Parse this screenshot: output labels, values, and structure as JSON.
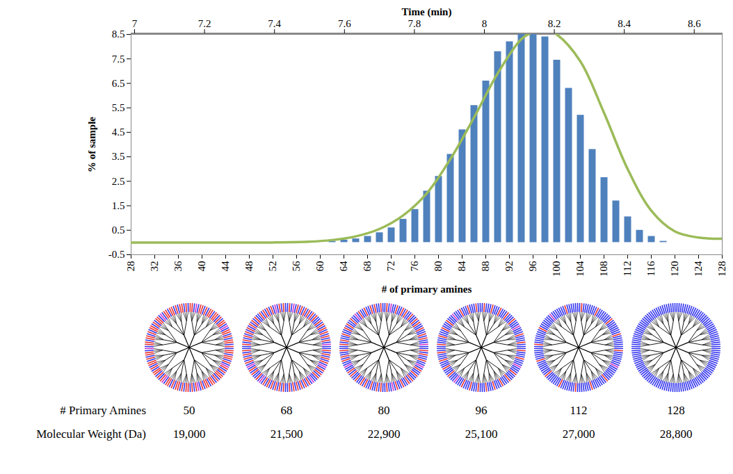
{
  "chart_data": {
    "type": "bar",
    "x_label": "# of primary amines",
    "y_label": "% of sample",
    "x2_label": "Time (min)",
    "x": [
      62,
      64,
      66,
      68,
      70,
      72,
      74,
      76,
      78,
      80,
      82,
      84,
      86,
      88,
      90,
      92,
      94,
      96,
      98,
      100,
      102,
      104,
      106,
      108,
      110,
      112,
      114,
      116,
      118
    ],
    "values": [
      0.05,
      0.1,
      0.15,
      0.25,
      0.4,
      0.6,
      0.95,
      1.35,
      2.1,
      2.7,
      3.6,
      4.6,
      5.6,
      6.6,
      7.8,
      8.2,
      8.5,
      8.5,
      8.4,
      7.45,
      6.3,
      5.2,
      3.8,
      2.65,
      1.7,
      1.05,
      0.5,
      0.25,
      0.05
    ],
    "color": "#4f81bd",
    "fit": {
      "type": "line",
      "color": "#9bbb59",
      "x": [
        28,
        40,
        52,
        58,
        62,
        66,
        70,
        74,
        78,
        82,
        86,
        90,
        94,
        96,
        98,
        100,
        104,
        108,
        112,
        116,
        120,
        124,
        128
      ],
      "values": [
        0,
        0,
        0,
        0.03,
        0.1,
        0.25,
        0.55,
        1.1,
        2.0,
        3.4,
        5.1,
        6.9,
        8.3,
        8.6,
        8.7,
        8.5,
        7.4,
        5.3,
        3.0,
        1.3,
        0.45,
        0.2,
        0.15
      ]
    },
    "xlim": [
      28,
      128
    ],
    "xticks": [
      28,
      32,
      36,
      40,
      44,
      48,
      52,
      56,
      60,
      64,
      68,
      72,
      76,
      80,
      84,
      88,
      92,
      96,
      100,
      104,
      108,
      112,
      116,
      120,
      124,
      128
    ],
    "ylim": [
      -0.5,
      8.5
    ],
    "yticks": [
      -0.5,
      0.5,
      1.5,
      2.5,
      3.5,
      4.5,
      5.5,
      6.5,
      7.5,
      8.5
    ],
    "x2lim": [
      6.99,
      8.68
    ],
    "x2ticks": [
      7,
      7.2,
      7.4,
      7.6,
      7.8,
      8,
      8.2,
      8.4,
      8.6
    ],
    "grid": false,
    "table": {
      "rows": [
        {
          "label": "# Primary Amines",
          "values": [
            50,
            68,
            80,
            96,
            112,
            128
          ]
        },
        {
          "label": "Molecular Weight (Da)",
          "values": [
            19000,
            21500,
            22900,
            25100,
            27000,
            28800
          ],
          "value_labels": [
            "19,000",
            "21,500",
            "22,900",
            "25,100",
            "27,000",
            "28,800"
          ]
        }
      ]
    }
  }
}
